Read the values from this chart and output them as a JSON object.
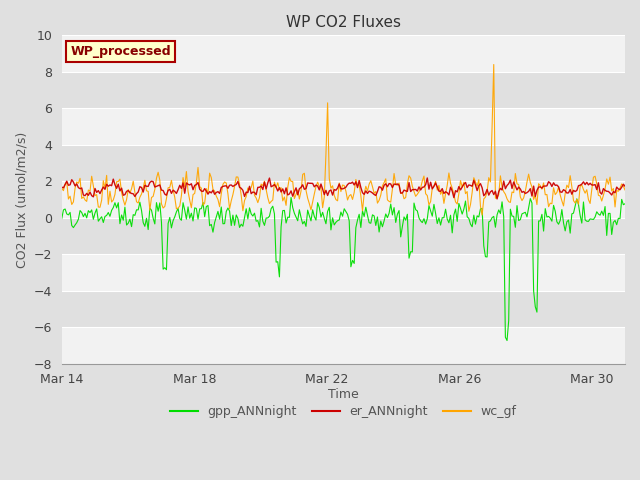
{
  "title": "WP CO2 Fluxes",
  "xlabel": "Time",
  "ylabel": "CO2 Flux (umol/m2/s)",
  "ylim": [
    -8,
    10
  ],
  "yticks": [
    -8,
    -6,
    -4,
    -2,
    0,
    2,
    4,
    6,
    8,
    10
  ],
  "xlim_days": [
    0,
    17
  ],
  "xtick_positions": [
    0,
    4,
    8,
    12,
    16
  ],
  "xtick_labels": [
    "Mar 14",
    "Mar 18",
    "Mar 22",
    "Mar 26",
    "Mar 30"
  ],
  "bg_outer": "#e0e0e0",
  "bg_white_band": "#f0f0f0",
  "bg_gray_band": "#dcdcdc",
  "line_colors": {
    "gpp": "#00dd00",
    "er": "#cc0000",
    "wc": "#ffa500"
  },
  "legend_label_box": "WP_processed",
  "legend_box_bg": "#ffffcc",
  "legend_box_border": "#aa0000",
  "legend_box_text": "#880000",
  "seed": 42,
  "n_points": 340,
  "figsize": [
    6.4,
    4.8
  ],
  "dpi": 100
}
